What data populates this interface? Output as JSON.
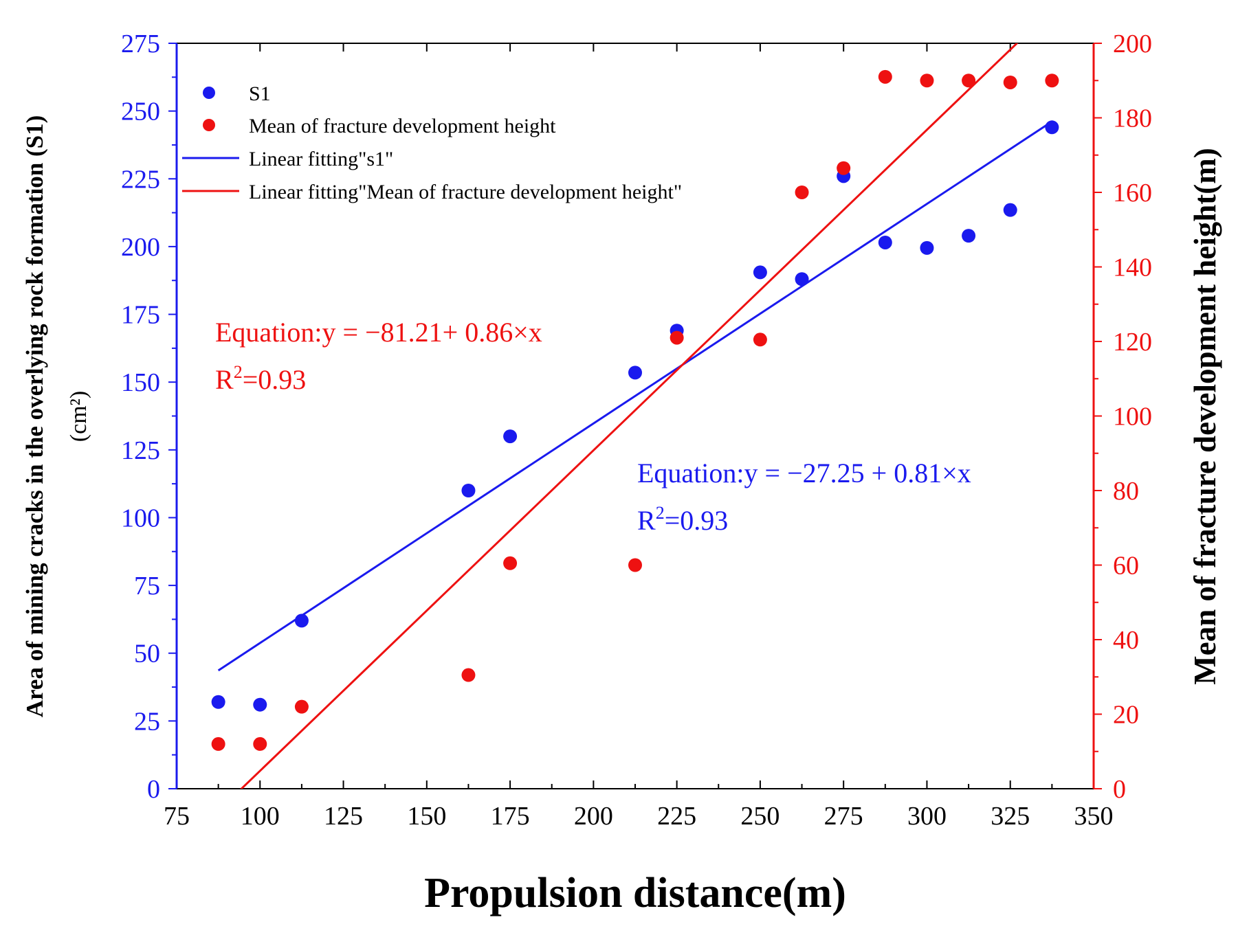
{
  "chart_data": {
    "type": "scatter",
    "xlabel": "Propulsion distance(m)",
    "ylabel_left": "Area of mining cracks in the overlying rock formation (S1)",
    "ylabel_left_unit": "(cm²)",
    "ylabel_right": "Mean of fracture development height(m)",
    "xlim": [
      75,
      350
    ],
    "xticks": [
      "75",
      "100",
      "125",
      "150",
      "175",
      "200",
      "225",
      "250",
      "275",
      "300",
      "325",
      "350"
    ],
    "ylim_left": [
      0,
      275
    ],
    "yticks_left": [
      "0",
      "25",
      "50",
      "75",
      "100",
      "125",
      "150",
      "175",
      "200",
      "225",
      "250",
      "275"
    ],
    "ylim_right": [
      0,
      200
    ],
    "yticks_right": [
      "0",
      "20",
      "40",
      "60",
      "80",
      "100",
      "120",
      "140",
      "160",
      "180",
      "200"
    ],
    "colors": {
      "s1": "#1a1aee",
      "height": "#ee1111"
    },
    "legend": {
      "position": "top-left",
      "items": [
        "S1",
        "Mean of fracture development height",
        "Linear fitting\"s1\"",
        "Linear fitting\"Mean of fracture development height\""
      ]
    },
    "series": [
      {
        "name": "S1",
        "axis": "left",
        "x": [
          87.5,
          100,
          112.5,
          162.5,
          175,
          212.5,
          225,
          250,
          262.5,
          275,
          287.5,
          300,
          312.5,
          325,
          337.5
        ],
        "y": [
          32,
          31,
          62,
          110,
          130,
          153.5,
          169,
          190.5,
          188,
          226,
          201.5,
          199.5,
          204,
          213.5,
          244
        ]
      },
      {
        "name": "Mean of fracture development height",
        "axis": "right",
        "x": [
          87.5,
          100,
          112.5,
          162.5,
          175,
          212.5,
          225,
          250,
          262.5,
          275,
          287.5,
          300,
          312.5,
          325,
          337.5
        ],
        "y": [
          12,
          12,
          22,
          30.5,
          60.5,
          60,
          121,
          120.5,
          160,
          166.5,
          191,
          190,
          190,
          189.5,
          190
        ]
      }
    ],
    "fits": [
      {
        "name": "Linear fitting\"s1\"",
        "axis": "left",
        "intercept": -27.25,
        "slope": 0.81,
        "x_range": [
          87.5,
          337.5
        ],
        "equation": "Equation:y = −27.25 + 0.81×x",
        "r2_label": "R",
        "r2_value": "=0.93"
      },
      {
        "name": "Linear fitting\"Mean of fracture development height\"",
        "axis": "right",
        "intercept": -81.21,
        "slope": 0.86,
        "x_range": [
          87.5,
          337.5
        ],
        "equation": "Equation:y = −81.21+ 0.86×x",
        "r2_label": "R",
        "r2_value": "=0.93"
      }
    ],
    "r2_superscript": "2"
  }
}
